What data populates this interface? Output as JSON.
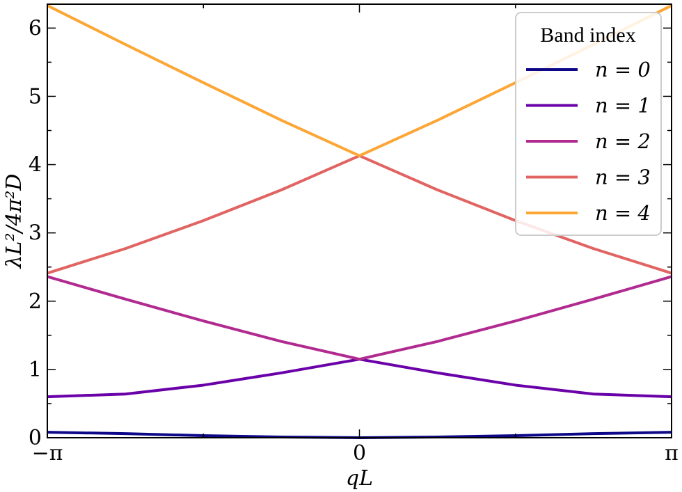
{
  "chart_data": {
    "type": "line",
    "xlabel": "qL",
    "ylabel": "λL²/4π²D",
    "x_ticks": [
      {
        "value": -3.14159,
        "label": "−π"
      },
      {
        "value": 0,
        "label": "0"
      },
      {
        "value": 3.14159,
        "label": "π"
      }
    ],
    "y_ticks": [
      {
        "value": 0,
        "label": "0"
      },
      {
        "value": 1,
        "label": "1"
      },
      {
        "value": 2,
        "label": "2"
      },
      {
        "value": 3,
        "label": "3"
      },
      {
        "value": 4,
        "label": "4"
      },
      {
        "value": 5,
        "label": "5"
      },
      {
        "value": 6,
        "label": "6"
      }
    ],
    "xlim": [
      -3.14159,
      3.14159
    ],
    "ylim": [
      0,
      6.35
    ],
    "grid": false,
    "legend": {
      "title": "Band index",
      "placement": "top-right"
    },
    "x": [
      -3.14159,
      -2.35619,
      -1.5708,
      -0.7854,
      0,
      0.7854,
      1.5708,
      2.35619,
      3.14159
    ],
    "series": [
      {
        "name": "n = 0",
        "color": "#0d0887",
        "values": [
          0.08,
          0.06,
          0.03,
          0.01,
          0.0,
          0.01,
          0.03,
          0.06,
          0.08
        ]
      },
      {
        "name": "n = 1",
        "color": "#6a00a8",
        "values": [
          0.6,
          0.64,
          0.77,
          0.95,
          1.15,
          0.95,
          0.77,
          0.64,
          0.6
        ]
      },
      {
        "name": "n = 2",
        "color": "#b12a90",
        "values": [
          2.36,
          2.03,
          1.71,
          1.41,
          1.15,
          1.41,
          1.71,
          2.03,
          2.36
        ]
      },
      {
        "name": "n = 3",
        "color": "#e16462",
        "values": [
          2.41,
          2.77,
          3.18,
          3.63,
          4.13,
          3.63,
          3.18,
          2.77,
          2.41
        ]
      },
      {
        "name": "n = 4",
        "color": "#fca636",
        "values": [
          6.33,
          5.76,
          5.2,
          4.65,
          4.13,
          4.65,
          5.2,
          5.76,
          6.33
        ]
      }
    ]
  }
}
